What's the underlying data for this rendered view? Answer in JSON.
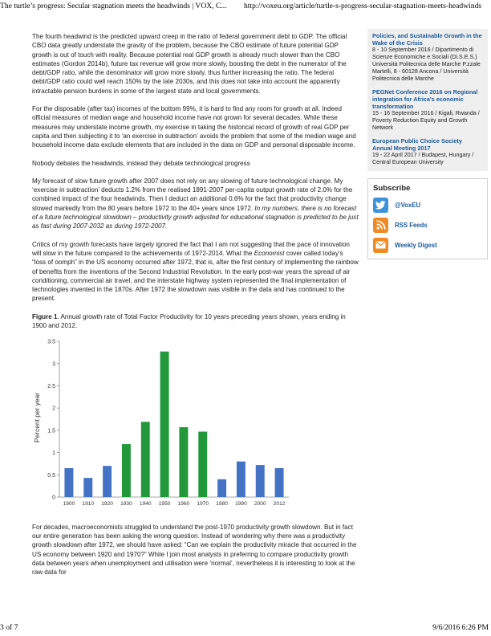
{
  "print_header": {
    "title": "The turtle’s progress: Secular stagnation meets the headwinds | VOX, C...",
    "url": "http://voxeu.org/article/turtle-s-progress-secular-stagnation-meets-headwinds"
  },
  "print_footer": {
    "page": "3 of 7",
    "datetime": "9/6/2016 6:26 PM"
  },
  "article": {
    "p1": "The fourth headwind is the predicted upward creep in the ratio of federal government debt to GDP. The official CBO data greatly understate the gravity of the problem, because the CBO estimate of future potential GDP growth is out of touch with reality. Because potential real GDP growth is already much slower than the CBO estimates (Gordon 2014b), future tax revenue will grow more slowly, boosting the debt in the numerator of the debt/GDP ratio, while the denominator will grow more slowly, thus further increasing the ratio. The federal debt/GDP ratio could well reach 150% by the late 2030s, and this does not take into account the apparently intractable pension burdens in some of the largest state and local governments.",
    "p2": "For the disposable (after tax) incomes of the bottom 99%, it is hard to find any room for growth at all. Indeed official measures of median wage and household income have not grown for several decades. While these measures may understate income growth, my exercise in taking the historical record of growth of real GDP per capita and then subjecting it to ‘an exercise in subtraction’ avoids the problem that some of the median wage and household income data exclude elements that are included in the data on GDP and personal disposable income.",
    "subhead": "Nobody debates the headwinds, instead they debate technological progress",
    "p3_text": "My forecast of slow future growth after 2007 does not rely on any slowing of future technological change. My ‘exercise in subtraction’ deducts 1.2% from the realised 1891-2007 per-capita output growth rate of 2.0% for the combined impact of the four headwinds. Then I deduct an additional 0.6% for the fact that productivity change slowed markedly from the 80 years before 1972 to the 40+ years since 1972. ",
    "p3_italic": "In my numbers, there is no forecast of a future technological slowdown – productivity growth adjusted for educational stagnation is predicted to be just as fast during 2007-2032 as during 1972-2007.",
    "p4_a": "Critics of my growth forecasts have largely ignored the fact that I am not suggesting that the pace of innovation will slow in the future compared to the achievements of 1972-2014. What the ",
    "p4_em": "Economist",
    "p4_b": " cover called today’s “loss of oomph” in the US economy occurred after 1972, that is, after the first century of implementing the rainbow of benefits from the inventions of the Second Industrial Revolution. In the early post-war years the spread of air conditioning, commercial air travel, and the interstate highway system represented the final implementation of technologies invented in the 1870s. After 1972 the slowdown was visible in the data and has continued to the present.",
    "fig_label": "Figure 1",
    "fig_caption": ". Annual growth rate of Total Factor Productivity for 10 years preceding years shown, years ending in 1900 and 2012.",
    "p5": "For decades, macroeconomists struggled to understand the post-1970 productivity growth slowdown. But in fact our entire generation has been asking the wrong question. Instead of wondering why there was a productivity growth slowdown after 1972, we should have asked: “Can we explain the productivity miracle that occurred in the US economy between 1920 and 1970?” While I join most analysts in preferring to compare productivity growth data between years when unemployment and utilisation were ‘normal’, nevertheless it is interesting to look at the raw data for"
  },
  "chart_data": {
    "type": "bar",
    "title": "",
    "xlabel": "",
    "ylabel": "Percent per year",
    "ylim": [
      0,
      3.5
    ],
    "yticks": [
      0,
      0.5,
      1,
      1.5,
      2,
      2.5,
      3,
      3.5
    ],
    "ytick_labels": [
      "0",
      "0.5",
      "1",
      "1.5",
      "2",
      "2.5",
      "3",
      "3.5"
    ],
    "grid": false,
    "categories": [
      "1900",
      "1910",
      "1920",
      "1930",
      "1940",
      "1950",
      "1960",
      "1970",
      "1980",
      "1990",
      "2000",
      "2012"
    ],
    "values": [
      0.65,
      0.43,
      0.7,
      1.19,
      1.69,
      3.27,
      1.57,
      1.47,
      0.4,
      0.8,
      0.72,
      0.65
    ],
    "bar_colors": [
      "#4472c4",
      "#4472c4",
      "#4472c4",
      "#22983a",
      "#22983a",
      "#22983a",
      "#22983a",
      "#22983a",
      "#4472c4",
      "#4472c4",
      "#4472c4",
      "#4472c4"
    ]
  },
  "sidebar": {
    "events": [
      {
        "title": "Policies, and Sustainable Growth in the Wake of the Crisis",
        "details": "8 - 10 September 2016 / Dipartimento di Scienze Economiche e Sociali (Di.S.E.S.) Università Politecnica delle Marche P.zzale Martelli, 8 - 60128 Ancona / Università Politecnica delle Marche"
      },
      {
        "title": "PEGNet Conference 2016 on Regional integration for Africa's economic transformation",
        "details": "15 - 16 September 2016 / Kigali, Rwanda / Poverty Reduction Equity and Growth Network"
      },
      {
        "title": "European Public Choice Society Annual Meeting 2017",
        "details": "19 - 22 April 2017 / Budapest, Hungary / Central European University"
      }
    ],
    "subscribe": {
      "title": "Subscribe",
      "items": [
        {
          "label": "@VoxEU",
          "icon": "twitter-icon",
          "color": "#3b94d9"
        },
        {
          "label": "RSS Feeds",
          "icon": "rss-icon",
          "color": "#f08a24"
        },
        {
          "label": "Weekly Digest",
          "icon": "envelope-icon",
          "color": "#f08a24"
        }
      ]
    }
  }
}
